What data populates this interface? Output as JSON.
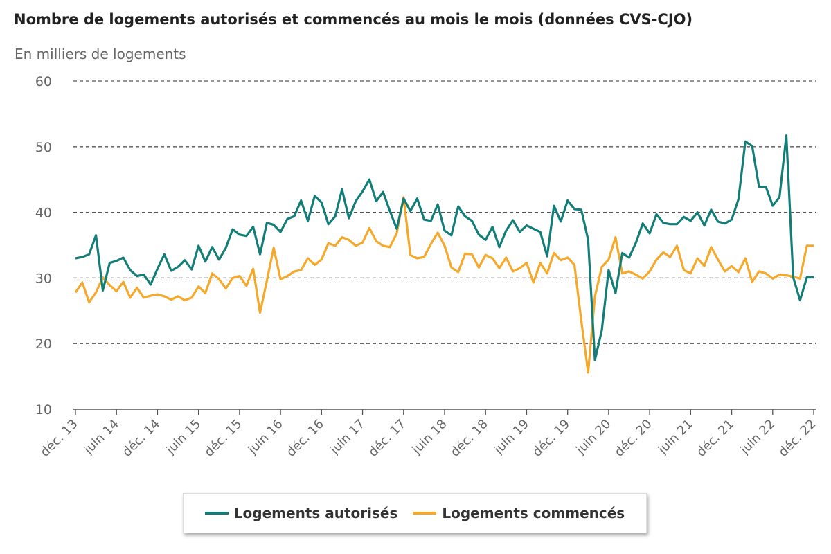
{
  "chart_data": {
    "type": "line",
    "title": "Nombre de logements autorisés et commencés au mois le mois (données CVS-CJO)",
    "ylabel": "En milliers de logements",
    "xlabel": "",
    "ylim": [
      10,
      60
    ],
    "yticks": [
      "60",
      "50",
      "40",
      "30",
      "20",
      "10"
    ],
    "ytick_values": [
      60,
      50,
      40,
      30,
      20,
      10
    ],
    "grid": true,
    "x_start": "déc. 13",
    "x_end": "déc. 22",
    "x_frequency": "monthly",
    "xtick_labels": [
      "déc. 13",
      "juin 14",
      "déc. 14",
      "juin 15",
      "déc. 15",
      "juin 16",
      "déc. 16",
      "juin 17",
      "déc. 17",
      "juin 18",
      "déc. 18",
      "juin 19",
      "déc. 19",
      "juin 20",
      "déc. 20",
      "juin 21",
      "déc. 21",
      "juin 22",
      "déc. 22"
    ],
    "legend_position": "bottom-center",
    "series": [
      {
        "name": "Logements autorisés",
        "color": "#137d78",
        "values": [
          33.0,
          33.2,
          33.6,
          36.5,
          28.1,
          32.3,
          32.6,
          33.1,
          31.2,
          30.3,
          30.5,
          29.0,
          31.4,
          33.6,
          31.1,
          31.7,
          32.7,
          31.3,
          34.9,
          32.5,
          34.7,
          32.8,
          34.6,
          37.4,
          36.6,
          36.4,
          37.8,
          33.6,
          38.4,
          38.1,
          37.0,
          39.0,
          39.4,
          41.8,
          38.7,
          42.5,
          41.5,
          38.2,
          39.4,
          43.5,
          39.1,
          41.7,
          43.2,
          45.0,
          41.7,
          43.1,
          40.2,
          37.5,
          42.1,
          40.2,
          42.1,
          38.9,
          38.7,
          41.2,
          37.2,
          36.5,
          40.9,
          39.4,
          38.7,
          36.6,
          35.8,
          37.8,
          34.7,
          37.2,
          38.8,
          37.0,
          38.0,
          37.5,
          37.0,
          33.3,
          41.0,
          38.6,
          41.8,
          40.5,
          40.4,
          35.8,
          17.5,
          22.0,
          31.2,
          27.7,
          33.8,
          33.1,
          35.4,
          38.3,
          36.8,
          39.7,
          38.4,
          38.2,
          38.2,
          39.3,
          38.7,
          40.0,
          38.0,
          40.4,
          38.6,
          38.3,
          38.9,
          42.0,
          50.8,
          50.1,
          43.9,
          43.9,
          41.0,
          42.3,
          51.7,
          30.1,
          26.6,
          30.1,
          30.1
        ]
      },
      {
        "name": "Logements commencés",
        "color": "#f5a82a",
        "values": [
          27.8,
          29.3,
          26.3,
          27.8,
          30.1,
          28.9,
          28.0,
          29.4,
          27.0,
          28.5,
          27.0,
          27.3,
          27.5,
          27.2,
          26.7,
          27.2,
          26.6,
          27.0,
          28.7,
          27.7,
          30.7,
          29.8,
          28.4,
          30.0,
          30.3,
          28.8,
          31.4,
          24.7,
          29.6,
          34.6,
          29.8,
          30.3,
          31.0,
          31.2,
          33.0,
          32.0,
          32.8,
          35.3,
          34.9,
          36.2,
          35.8,
          34.9,
          35.4,
          37.6,
          35.6,
          34.9,
          34.7,
          36.8,
          42.3,
          33.5,
          33.0,
          33.2,
          35.2,
          36.9,
          34.9,
          31.6,
          30.9,
          33.7,
          33.6,
          31.6,
          33.5,
          33.0,
          31.5,
          33.1,
          31.0,
          31.5,
          32.3,
          29.3,
          32.3,
          30.7,
          33.8,
          32.7,
          33.1,
          32.0,
          23.5,
          15.6,
          27.2,
          31.7,
          32.8,
          36.2,
          30.7,
          31.0,
          30.5,
          29.9,
          31.0,
          32.8,
          33.9,
          33.2,
          34.9,
          31.2,
          30.7,
          33.0,
          31.8,
          34.7,
          32.8,
          31.0,
          31.8,
          30.9,
          33.0,
          29.4,
          31.0,
          30.7,
          29.9,
          30.5,
          30.4,
          30.2,
          29.9,
          34.9,
          34.9
        ]
      }
    ]
  }
}
